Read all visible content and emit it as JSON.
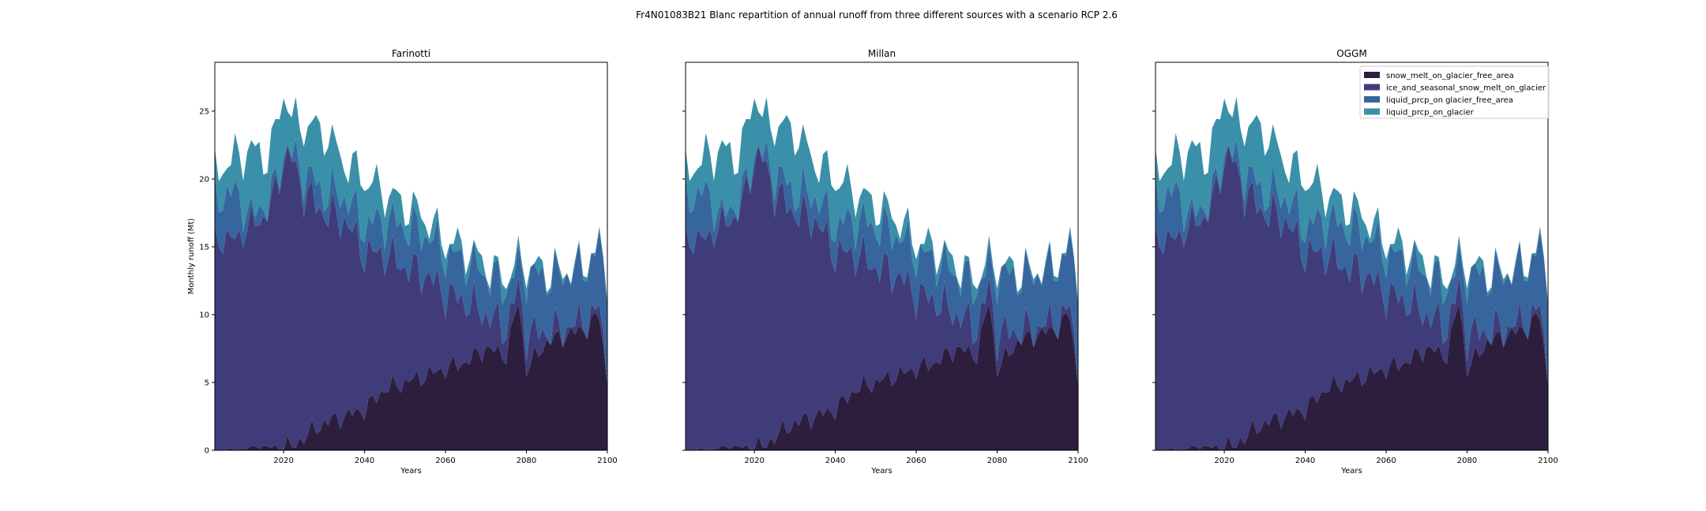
{
  "figure": {
    "suptitle": "Fr4N01083B21 Blanc repartition of annual runoff from three different sources with a scenario RCP 2.6"
  },
  "legend": {
    "placement": "top-right of third panel",
    "entries": [
      {
        "label": "snow_melt_on_glacier_free_area",
        "color": "#2d1e3e"
      },
      {
        "label": "ice_and_seasonal_snow_melt_on_glacier",
        "color": "#403c7a"
      },
      {
        "label": "liquid_prcp_on glacier_free_area",
        "color": "#37669e"
      },
      {
        "label": "liquid_prcp_on_glacier",
        "color": "#3a90a8"
      }
    ]
  },
  "chart_data": [
    {
      "type": "area",
      "stacked": true,
      "title": "Farinotti",
      "xlabel": "Years",
      "ylabel": "Monthly runoff (Mt)",
      "xlim": [
        2003,
        2100
      ],
      "ylim": [
        0,
        28.6
      ],
      "xticks": [
        2020,
        2040,
        2060,
        2080,
        2100
      ],
      "yticks": [
        0,
        5,
        10,
        15,
        20,
        25
      ],
      "grid": false,
      "x": [
        2003,
        2008,
        2012,
        2015,
        2017,
        2020,
        2022,
        2025,
        2030,
        2035,
        2040,
        2045,
        2050,
        2055,
        2060,
        2065,
        2070,
        2075,
        2078,
        2080,
        2085,
        2090,
        2095,
        2098,
        2100
      ],
      "series": [
        {
          "name": "snow_melt_on_glacier_free_area",
          "values": [
            0,
            0,
            0.2,
            0.3,
            0.2,
            0.5,
            0.2,
            1.0,
            2.0,
            2.5,
            3.0,
            4.5,
            5.0,
            5.5,
            6.0,
            6.5,
            7.5,
            7.0,
            11.0,
            6.0,
            8.0,
            8.5,
            9.0,
            10.0,
            5.0
          ]
        },
        {
          "name": "ice_and_seasonal_snow_melt_on_glacier",
          "values": [
            15.5,
            15.5,
            16.5,
            16.8,
            18.0,
            21.0,
            21.3,
            18.0,
            15.5,
            14.5,
            11.5,
            10.0,
            8.5,
            7.5,
            5.5,
            4.5,
            2.5,
            2.0,
            1.0,
            2.5,
            0.8,
            0.5,
            0.5,
            0.5,
            0.5
          ]
        },
        {
          "name": "liquid_prcp_on glacier_free_area",
          "values": [
            3.0,
            3.5,
            0.5,
            1.0,
            0.5,
            0.5,
            0.3,
            1.5,
            1.5,
            1.8,
            2.0,
            2.5,
            3.0,
            3.0,
            3.0,
            3.0,
            3.0,
            3.0,
            1.5,
            4.5,
            4.0,
            4.0,
            4.0,
            4.5,
            6.5
          ]
        },
        {
          "name": "liquid_prcp_on_glacier",
          "values": [
            2.0,
            2.5,
            5.0,
            3.5,
            3.5,
            4.5,
            2.5,
            3.5,
            4.5,
            2.5,
            3.5,
            2.0,
            1.5,
            1.2,
            0.8,
            0.8,
            0.6,
            0.5,
            0.4,
            0.5,
            0.3,
            0.2,
            0.2,
            0.2,
            0.2
          ]
        }
      ]
    },
    {
      "type": "area",
      "stacked": true,
      "title": "Millan",
      "xlabel": "Years",
      "ylabel": "",
      "xlim": [
        2003,
        2100
      ],
      "ylim": [
        0,
        28.6
      ],
      "xticks": [
        2020,
        2040,
        2060,
        2080,
        2100
      ],
      "yticks": [
        0,
        5,
        10,
        15,
        20,
        25
      ],
      "grid": false,
      "x": [
        2003,
        2008,
        2012,
        2015,
        2017,
        2020,
        2022,
        2025,
        2030,
        2035,
        2040,
        2045,
        2050,
        2055,
        2060,
        2065,
        2070,
        2075,
        2078,
        2080,
        2085,
        2090,
        2095,
        2098,
        2100
      ],
      "series": [
        {
          "name": "snow_melt_on_glacier_free_area",
          "values": [
            0,
            0,
            0.2,
            0.3,
            0.2,
            0.5,
            0.2,
            1.0,
            2.0,
            2.5,
            3.0,
            4.5,
            5.0,
            5.5,
            6.0,
            6.5,
            7.5,
            7.0,
            11.0,
            6.0,
            8.0,
            8.5,
            9.0,
            10.0,
            5.0
          ]
        },
        {
          "name": "ice_and_seasonal_snow_melt_on_glacier",
          "values": [
            15.5,
            15.5,
            16.5,
            16.8,
            18.0,
            21.0,
            21.3,
            18.0,
            15.5,
            14.5,
            11.5,
            10.0,
            8.5,
            7.5,
            5.5,
            4.5,
            2.5,
            2.0,
            1.0,
            2.5,
            0.8,
            0.5,
            0.5,
            0.5,
            0.5
          ]
        },
        {
          "name": "liquid_prcp_on glacier_free_area",
          "values": [
            3.0,
            3.5,
            0.5,
            1.0,
            0.5,
            0.5,
            0.3,
            1.5,
            1.5,
            1.8,
            2.0,
            2.5,
            3.0,
            3.0,
            3.0,
            3.0,
            3.0,
            3.0,
            1.5,
            4.5,
            4.0,
            4.0,
            4.0,
            4.5,
            6.5
          ]
        },
        {
          "name": "liquid_prcp_on_glacier",
          "values": [
            2.0,
            2.5,
            5.0,
            3.5,
            3.5,
            4.5,
            2.5,
            3.5,
            4.5,
            2.5,
            3.5,
            2.0,
            1.5,
            1.2,
            0.8,
            0.8,
            0.6,
            0.5,
            0.4,
            0.5,
            0.3,
            0.2,
            0.2,
            0.2,
            0.2
          ]
        }
      ]
    },
    {
      "type": "area",
      "stacked": true,
      "title": "OGGM",
      "xlabel": "Years",
      "ylabel": "",
      "xlim": [
        2003,
        2100
      ],
      "ylim": [
        0,
        28.6
      ],
      "xticks": [
        2020,
        2040,
        2060,
        2080,
        2100
      ],
      "yticks": [
        0,
        5,
        10,
        15,
        20,
        25
      ],
      "grid": false,
      "x": [
        2003,
        2008,
        2012,
        2015,
        2017,
        2020,
        2022,
        2025,
        2030,
        2035,
        2040,
        2045,
        2050,
        2055,
        2060,
        2065,
        2070,
        2075,
        2078,
        2080,
        2085,
        2090,
        2095,
        2098,
        2100
      ],
      "series": [
        {
          "name": "snow_melt_on_glacier_free_area",
          "values": [
            0,
            0,
            0.2,
            0.3,
            0.2,
            0.5,
            0.2,
            1.0,
            2.0,
            2.5,
            3.0,
            4.5,
            5.0,
            5.5,
            6.0,
            6.5,
            7.5,
            7.0,
            11.0,
            6.0,
            8.0,
            8.5,
            9.0,
            10.0,
            5.0
          ]
        },
        {
          "name": "ice_and_seasonal_snow_melt_on_glacier",
          "values": [
            15.5,
            15.5,
            16.5,
            16.8,
            18.0,
            21.0,
            21.3,
            18.0,
            15.5,
            14.5,
            11.5,
            10.0,
            8.5,
            7.5,
            5.5,
            4.5,
            2.5,
            2.0,
            1.0,
            2.5,
            0.8,
            0.5,
            0.5,
            0.5,
            0.5
          ]
        },
        {
          "name": "liquid_prcp_on glacier_free_area",
          "values": [
            3.0,
            3.5,
            0.5,
            1.0,
            0.5,
            0.5,
            0.3,
            1.5,
            1.5,
            1.8,
            2.0,
            2.5,
            3.0,
            3.0,
            3.0,
            3.0,
            3.0,
            3.0,
            1.5,
            4.5,
            4.0,
            4.0,
            4.0,
            4.5,
            6.5
          ]
        },
        {
          "name": "liquid_prcp_on_glacier",
          "values": [
            2.0,
            2.5,
            5.0,
            3.5,
            3.5,
            4.5,
            2.5,
            3.5,
            4.5,
            2.5,
            3.5,
            2.0,
            1.5,
            1.2,
            0.8,
            0.8,
            0.6,
            0.5,
            0.4,
            0.5,
            0.3,
            0.2,
            0.2,
            0.2,
            0.2
          ]
        }
      ]
    }
  ]
}
